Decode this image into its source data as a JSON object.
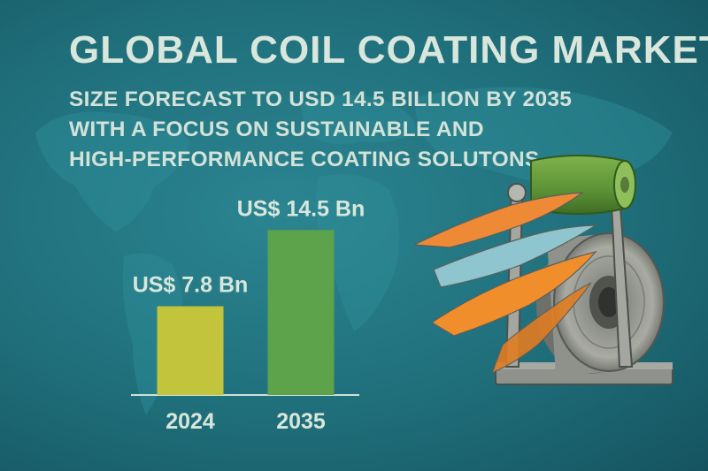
{
  "header": {
    "title": "GLOBAL COIL COATING MARKET",
    "subtitle_lines": [
      "SIZE FORECAST TO USD 14.5 BILLION BY 2035",
      "WITH A FOCUS ON SUSTAINABLE AND",
      "HIGH-PERFORMANCE COATING SOLUTONS"
    ]
  },
  "chart_data": {
    "type": "bar",
    "categories": [
      "2024",
      "2035"
    ],
    "values": [
      7.8,
      14.5
    ],
    "data_labels": [
      "US$ 7.8 Bn",
      "US$ 14.5 Bn"
    ],
    "bar_colors": [
      "#c2c53c",
      "#5da34b"
    ],
    "ylim": [
      0,
      16
    ],
    "grid": false,
    "legend": "none"
  },
  "theme": {
    "background": "#1f6f7b",
    "text_color": "#d8e6dc",
    "axis_color": "#cfe0d6"
  },
  "illustration": {
    "icon": "coil-coating-machine-icon"
  }
}
